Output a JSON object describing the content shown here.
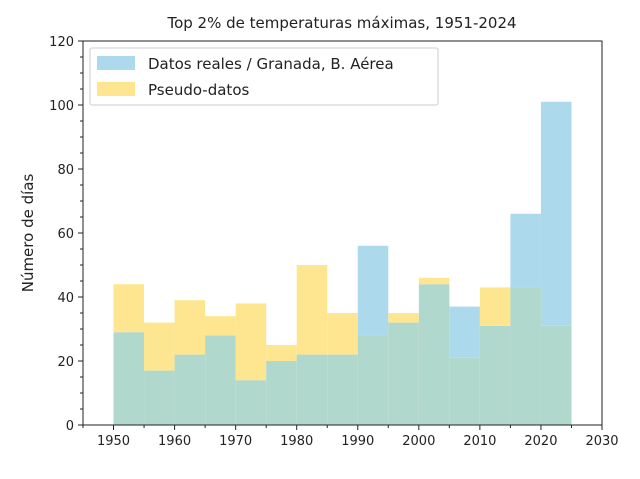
{
  "chart_data": {
    "type": "bar",
    "subtype": "overlapping-histogram",
    "title": "Top 2% de temperaturas máximas, 1951-2024",
    "xlabel": "",
    "ylabel": "Número de días",
    "xlim": [
      1945,
      2030
    ],
    "ylim": [
      0,
      120
    ],
    "xticks": [
      1950,
      1960,
      1970,
      1980,
      1990,
      2000,
      2010,
      2020,
      2030
    ],
    "yticks": [
      0,
      20,
      40,
      60,
      80,
      100,
      120
    ],
    "bin_edges": [
      1950,
      1955,
      1960,
      1965,
      1970,
      1975,
      1980,
      1985,
      1990,
      1995,
      2000,
      2005,
      2010,
      2015,
      2020,
      2025
    ],
    "grid": false,
    "legend_position": "top-left",
    "series": [
      {
        "name": "Datos reales / Granada, B. Aérea",
        "color": "#acd9ec",
        "values": [
          29,
          17,
          22,
          28,
          14,
          20,
          22,
          22,
          56,
          32,
          44,
          37,
          31,
          66,
          101
        ]
      },
      {
        "name": "Pseudo-datos",
        "color": "#fde68f",
        "values": [
          44,
          32,
          39,
          34,
          38,
          25,
          50,
          35,
          28,
          35,
          46,
          21,
          43,
          43,
          31
        ]
      }
    ],
    "overlap_color": "#b1d8cc"
  }
}
